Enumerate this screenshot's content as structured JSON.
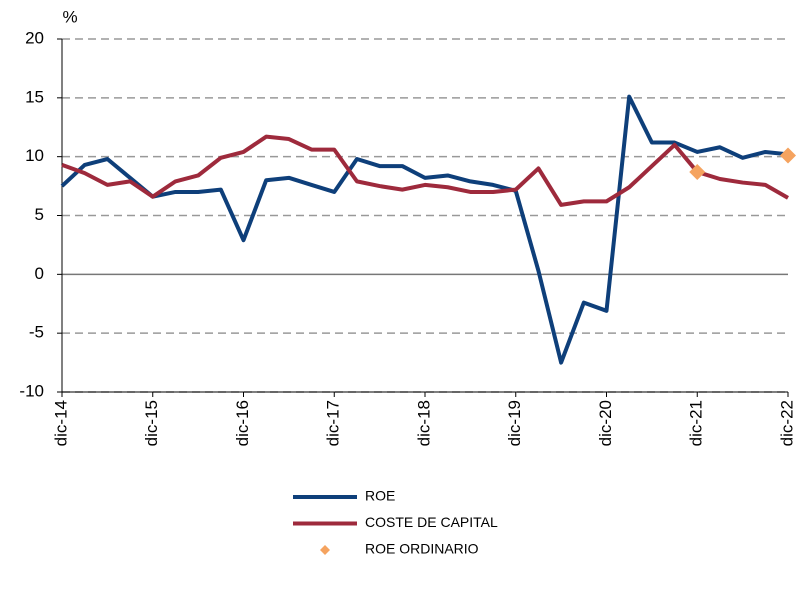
{
  "chart_data": {
    "type": "line",
    "y_label": "%",
    "categories": [
      "dic-14",
      null,
      null,
      null,
      "dic-15",
      null,
      null,
      null,
      "dic-16",
      null,
      null,
      null,
      "dic-17",
      null,
      null,
      null,
      "dic-18",
      null,
      null,
      null,
      "dic-19",
      null,
      null,
      null,
      "dic-20",
      null,
      null,
      null,
      "dic-21",
      null,
      null,
      null,
      "dic-22"
    ],
    "series": [
      {
        "name": "ROE",
        "color": "#0e3f7a",
        "values": [
          7.5,
          9.3,
          9.8,
          8.2,
          6.6,
          7.0,
          7.0,
          7.2,
          2.9,
          8.0,
          8.2,
          7.6,
          7.0,
          9.8,
          9.2,
          9.2,
          8.2,
          8.4,
          7.9,
          7.6,
          7.1,
          0.3,
          -7.5,
          -2.4,
          -3.1,
          15.1,
          11.2,
          11.2,
          10.4,
          10.8,
          9.9,
          10.4,
          10.2
        ]
      },
      {
        "name": "COSTE DE CAPITAL",
        "color": "#9e2a3c",
        "values": [
          9.3,
          8.6,
          7.6,
          7.9,
          6.6,
          7.9,
          8.4,
          9.9,
          10.4,
          11.7,
          11.5,
          10.6,
          10.6,
          7.9,
          7.5,
          7.2,
          7.6,
          7.4,
          7.0,
          7.0,
          7.2,
          9.0,
          5.9,
          6.2,
          6.2,
          7.4,
          9.2,
          11.0,
          8.7,
          8.1,
          7.8,
          7.6,
          6.5
        ]
      },
      {
        "name": "ROE ORDINARIO",
        "color": "#f5a35f",
        "marker": "diamond",
        "values": [
          null,
          null,
          null,
          null,
          null,
          null,
          null,
          null,
          null,
          null,
          null,
          null,
          null,
          null,
          null,
          null,
          null,
          null,
          null,
          null,
          null,
          null,
          null,
          null,
          null,
          null,
          null,
          null,
          8.7,
          null,
          null,
          null,
          10.1
        ]
      }
    ],
    "ylim": [
      -10,
      20
    ],
    "yticks": [
      -10,
      -5,
      0,
      5,
      10,
      15,
      20
    ],
    "grid": true
  }
}
